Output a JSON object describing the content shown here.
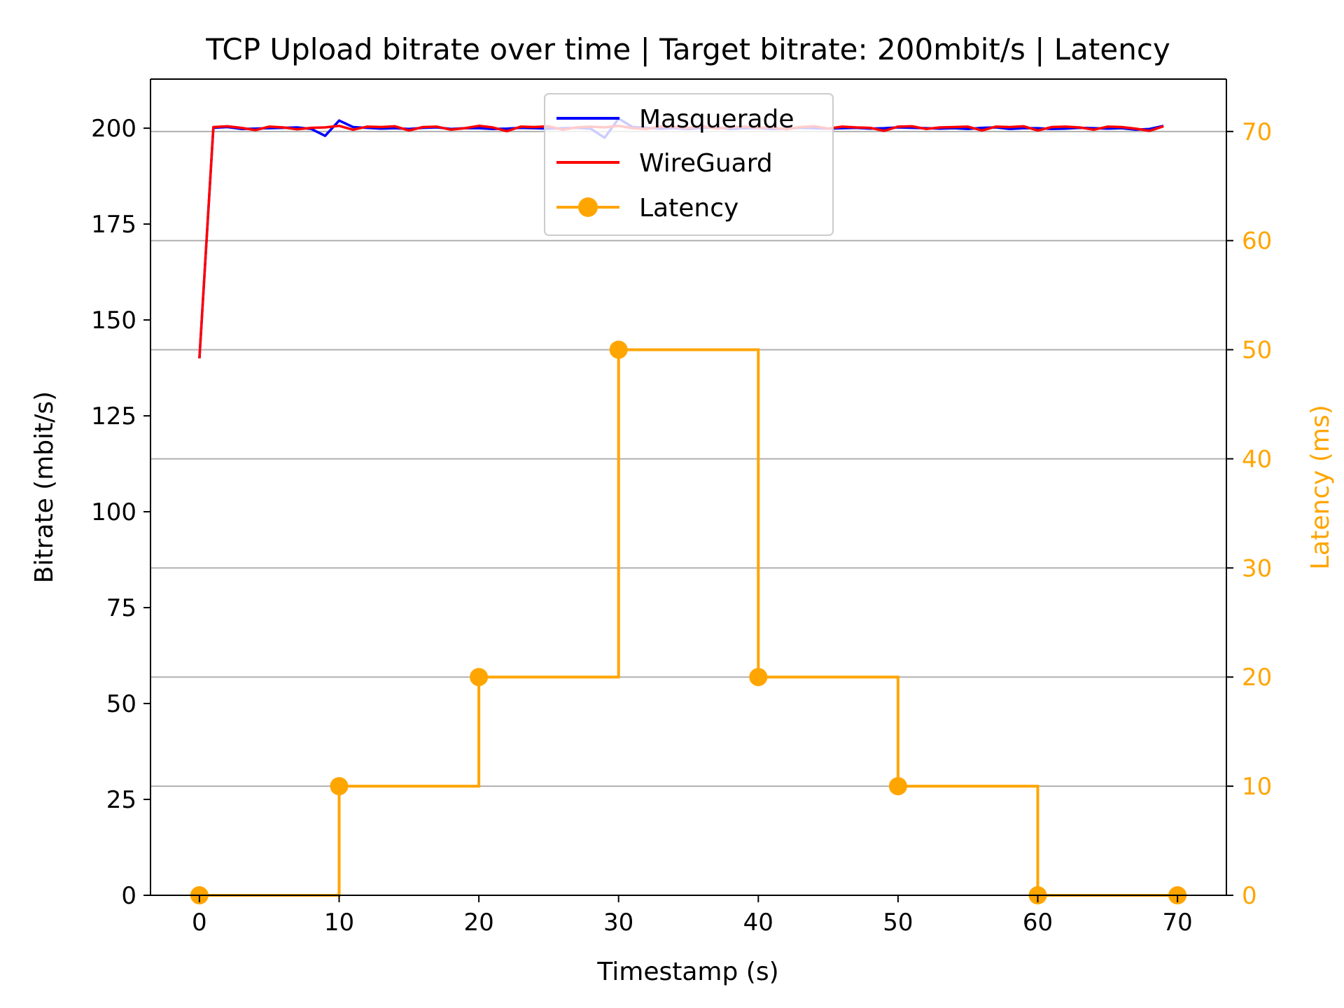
{
  "colors": {
    "masquerade": "#0000FF",
    "wireguard": "#FF0000",
    "latency": "#FFA500",
    "grid": "#b0b0b0",
    "axis": "#000000"
  },
  "chart_data": {
    "type": "line",
    "title": "TCP Upload bitrate over time | Target bitrate: 200mbit/s | Latency",
    "xlabel": "Timestamp (s)",
    "ylabel": "Bitrate (mbit/s)",
    "y2label": "Latency (ms)",
    "xlim": [
      -3.5,
      73.5
    ],
    "ylim": [
      0,
      212.8
    ],
    "y2lim": [
      0,
      74.8
    ],
    "x_ticks": [
      0,
      10,
      20,
      30,
      40,
      50,
      60,
      70
    ],
    "y_ticks": [
      0,
      25,
      50,
      75,
      100,
      125,
      150,
      175,
      200
    ],
    "y2_ticks": [
      0,
      10,
      20,
      30,
      40,
      50,
      60,
      70
    ],
    "grid": "horizontal lines at right-axis ticks",
    "legend_position": "upper center",
    "series": [
      {
        "name": "Masquerade",
        "axis": "left",
        "x": [
          0,
          1,
          2,
          3,
          4,
          5,
          6,
          7,
          8,
          9,
          10,
          11,
          12,
          13,
          14,
          15,
          16,
          17,
          18,
          19,
          20,
          21,
          22,
          23,
          24,
          25,
          26,
          27,
          28,
          29,
          30,
          31,
          32,
          33,
          34,
          35,
          36,
          37,
          38,
          39,
          40,
          41,
          42,
          43,
          44,
          45,
          46,
          47,
          48,
          49,
          50,
          51,
          52,
          53,
          54,
          55,
          56,
          57,
          58,
          59,
          60,
          61,
          62,
          63,
          64,
          65,
          66,
          67,
          68,
          69
        ],
        "values": [
          140,
          200.1,
          200.3,
          199.8,
          199.9,
          200.0,
          200.1,
          200.2,
          199.8,
          198.0,
          202.0,
          200.3,
          200.1,
          199.9,
          200.0,
          199.8,
          200.1,
          200.2,
          199.8,
          200.0,
          200.0,
          199.8,
          199.9,
          200.1,
          200.0,
          199.9,
          200.0,
          200.1,
          199.9,
          197.5,
          202.5,
          200.3,
          200.1,
          199.9,
          200.0,
          199.8,
          200.1,
          200.2,
          199.8,
          200.0,
          200.0,
          199.8,
          199.9,
          200.1,
          200.0,
          199.9,
          200.0,
          200.1,
          199.9,
          200.0,
          200.2,
          200.1,
          200.0,
          199.9,
          200.0,
          199.8,
          200.1,
          200.2,
          199.8,
          200.0,
          200.0,
          199.8,
          199.9,
          200.1,
          200.0,
          199.9,
          200.0,
          199.6,
          199.8,
          200.6
        ]
      },
      {
        "name": "WireGuard",
        "axis": "left",
        "x": [
          0,
          1,
          2,
          3,
          4,
          5,
          6,
          7,
          8,
          9,
          10,
          11,
          12,
          13,
          14,
          15,
          16,
          17,
          18,
          19,
          20,
          21,
          22,
          23,
          24,
          25,
          26,
          27,
          28,
          29,
          30,
          31,
          32,
          33,
          34,
          35,
          36,
          37,
          38,
          39,
          40,
          41,
          42,
          43,
          44,
          45,
          46,
          47,
          48,
          49,
          50,
          51,
          52,
          53,
          54,
          55,
          56,
          57,
          58,
          59,
          60,
          61,
          62,
          63,
          64,
          65,
          66,
          67,
          68,
          69
        ],
        "values": [
          140,
          200.3,
          200.5,
          200.1,
          199.5,
          200.4,
          200.2,
          199.7,
          200.1,
          200.2,
          200.6,
          199.6,
          200.4,
          200.3,
          200.5,
          199.4,
          200.3,
          200.4,
          199.6,
          200.0,
          200.6,
          200.2,
          199.2,
          200.4,
          200.3,
          200.5,
          199.6,
          200.2,
          200.4,
          200.2,
          200.6,
          200.0,
          199.8,
          200.4,
          200.3,
          200.1,
          200.5,
          199.9,
          200.2,
          200.4,
          200.1,
          200.2,
          199.7,
          200.3,
          200.5,
          199.9,
          200.4,
          200.2,
          200.1,
          199.3,
          200.4,
          200.5,
          199.8,
          200.2,
          200.3,
          200.4,
          199.4,
          200.4,
          200.3,
          200.5,
          199.4,
          200.3,
          200.4,
          200.2,
          199.6,
          200.4,
          200.3,
          199.9,
          199.3,
          200.5
        ]
      },
      {
        "name": "Latency",
        "axis": "right",
        "step": "post",
        "x": [
          0,
          10,
          20,
          30,
          40,
          50,
          60,
          70
        ],
        "values": [
          0,
          10,
          20,
          50,
          20,
          10,
          0,
          0
        ]
      }
    ]
  }
}
